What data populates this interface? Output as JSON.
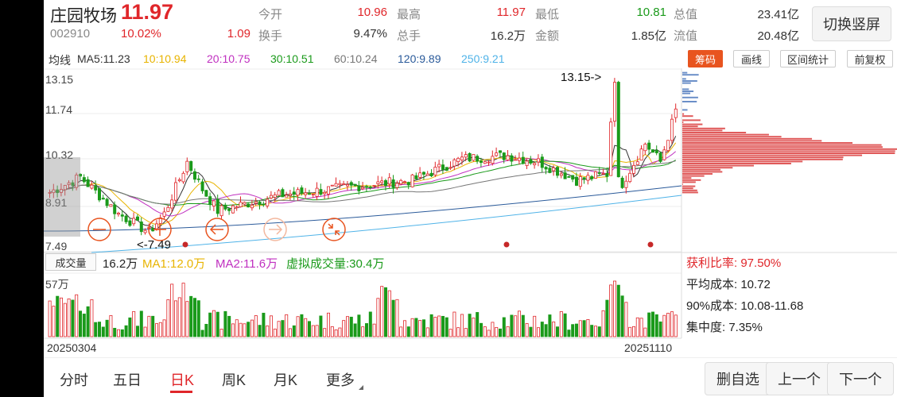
{
  "stock": {
    "name": "庄园牧场",
    "price": "11.97",
    "code": "002910",
    "change_pct": "10.02%",
    "change": "1.09"
  },
  "quote": [
    {
      "label": "今开",
      "value": "10.96",
      "color": "red"
    },
    {
      "label": "最高",
      "value": "11.97",
      "color": "red"
    },
    {
      "label": "最低",
      "value": "10.81",
      "color": "green"
    },
    {
      "label": "总值",
      "value": "23.41亿",
      "color": ""
    },
    {
      "label": "换手",
      "value": "9.47%",
      "color": ""
    },
    {
      "label": "总手",
      "value": "16.2万",
      "color": ""
    },
    {
      "label": "金额",
      "value": "1.85亿",
      "color": ""
    },
    {
      "label": "流值",
      "value": "20.48亿",
      "color": ""
    }
  ],
  "switch_label": "切换竖屏",
  "ma": {
    "title": "均线",
    "items": [
      {
        "text": "MA5:11.23",
        "color": "#333333"
      },
      {
        "text": "10:10.94",
        "color": "#e8b400"
      },
      {
        "text": "20:10.75",
        "color": "#c030c0"
      },
      {
        "text": "30:10.51",
        "color": "#1a9a1a"
      },
      {
        "text": "60:10.24",
        "color": "#777777"
      },
      {
        "text": "120:9.89",
        "color": "#2a5a9a"
      },
      {
        "text": "250:9.21",
        "color": "#4fb3e8"
      }
    ]
  },
  "tools": [
    "筹码",
    "画线",
    "区间统计",
    "前复权"
  ],
  "price_axis": [
    "13.15",
    "11.74",
    "10.32",
    "8.91",
    "7.49"
  ],
  "annotations": {
    "high": "13.15->",
    "low": "<-7.49"
  },
  "volume": {
    "label": "成交量",
    "value": "16.2万",
    "ma1": "MA1:12.0万",
    "ma2": "MA2:11.6万",
    "virtual": "虚拟成交量:30.4万",
    "axis_max": "57万"
  },
  "chip": {
    "profit_label": "获利比率:",
    "profit_value": "97.50%",
    "avg_cost": "平均成本: 10.72",
    "cost90": "90%成本: 10.08-11.68",
    "concentration": "集中度: 7.35%"
  },
  "dates": {
    "start": "20250304",
    "end": "20251110"
  },
  "period_tabs": [
    "分时",
    "五日",
    "日K",
    "周K",
    "月K",
    "更多"
  ],
  "buttons": {
    "delete": "删自选",
    "prev": "上一个",
    "next": "下一个"
  },
  "colors": {
    "up": "#e0262a",
    "down": "#1a9a1a",
    "accent": "#e8541f"
  }
}
